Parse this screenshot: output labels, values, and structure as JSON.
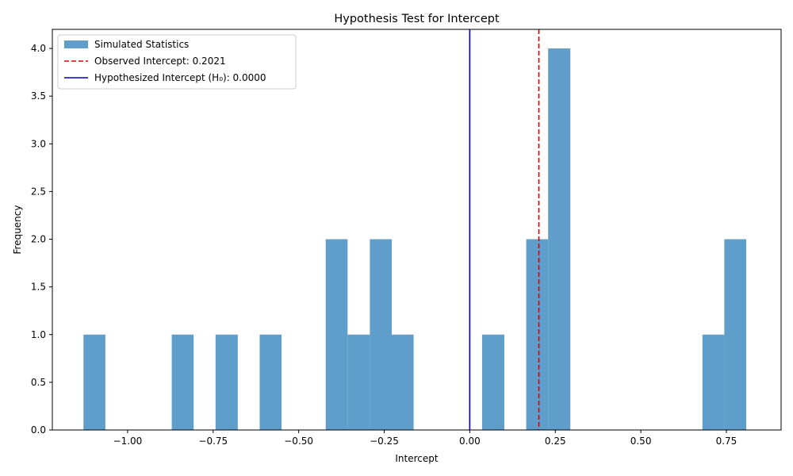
{
  "chart_data": {
    "type": "bar",
    "title": "Hypothesis Test for Intercept",
    "xlabel": "Intercept",
    "ylabel": "Frequency",
    "xlim": [
      -1.22,
      0.91
    ],
    "ylim": [
      0,
      4.2
    ],
    "x_ticks": [
      -1.0,
      -0.75,
      -0.5,
      -0.25,
      0.0,
      0.25,
      0.5,
      0.75
    ],
    "x_tick_labels": [
      "−1.00",
      "−0.75",
      "−0.50",
      "−0.25",
      "0.00",
      "0.25",
      "0.50",
      "0.75"
    ],
    "y_ticks": [
      0,
      0.5,
      1.0,
      1.5,
      2.0,
      2.5,
      3.0,
      3.5,
      4.0
    ],
    "y_tick_labels": [
      "0.0",
      "0.5",
      "1.0",
      "1.5",
      "2.0",
      "2.5",
      "3.0",
      "3.5",
      "4.0"
    ],
    "series": [
      {
        "name": "Simulated Statistics",
        "color": "#5f9ecb",
        "bins": [
          {
            "x0": -1.129,
            "x1": -1.065,
            "count": 1
          },
          {
            "x0": -0.871,
            "x1": -0.807,
            "count": 1
          },
          {
            "x0": -0.743,
            "x1": -0.678,
            "count": 1
          },
          {
            "x0": -0.614,
            "x1": -0.55,
            "count": 1
          },
          {
            "x0": -0.421,
            "x1": -0.357,
            "count": 2
          },
          {
            "x0": -0.357,
            "x1": -0.292,
            "count": 1
          },
          {
            "x0": -0.292,
            "x1": -0.228,
            "count": 2
          },
          {
            "x0": -0.228,
            "x1": -0.164,
            "count": 1
          },
          {
            "x0": 0.036,
            "x1": 0.101,
            "count": 1
          },
          {
            "x0": 0.165,
            "x1": 0.229,
            "count": 2
          },
          {
            "x0": 0.229,
            "x1": 0.294,
            "count": 4
          },
          {
            "x0": 0.68,
            "x1": 0.744,
            "count": 1
          },
          {
            "x0": 0.744,
            "x1": 0.808,
            "count": 2
          }
        ]
      }
    ],
    "vlines": [
      {
        "name": "Observed Intercept: 0.2021",
        "x": 0.2021,
        "color": "#e00000",
        "style": "dashed"
      },
      {
        "name": "Hypothesized Intercept (H₀): 0.0000",
        "x": 0.0,
        "color": "#0000cc",
        "style": "solid"
      }
    ],
    "legend_position": "top-left",
    "grid": false
  }
}
